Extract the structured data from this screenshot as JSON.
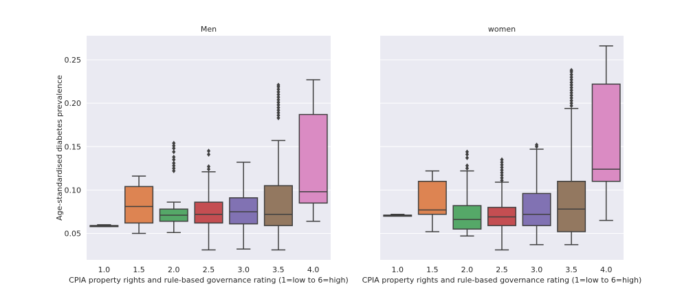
{
  "chart_data": [
    {
      "type": "box",
      "title": "Men",
      "xlabel": "CPIA property rights and rule-based governance rating (1=low to 6=high)",
      "ylabel": "Age-standardised diabetes prevalence",
      "ylim": [
        0.018,
        0.276
      ],
      "yticks": [
        0.05,
        0.1,
        0.15,
        0.2,
        0.25
      ],
      "ytick_labels": [
        "0.05",
        "0.10",
        "0.15",
        "0.20",
        "0.25"
      ],
      "categories": [
        "1.0",
        "1.5",
        "2.0",
        "2.5",
        "3.0",
        "3.5",
        "4.0"
      ],
      "grid": true,
      "boxes": [
        {
          "category": "1.0",
          "whisker_low": 0.058,
          "q1": 0.058,
          "median": 0.059,
          "q3": 0.059,
          "whisker_high": 0.06,
          "outliers": [],
          "color": "#4c72b0"
        },
        {
          "category": "1.5",
          "whisker_low": 0.05,
          "q1": 0.062,
          "median": 0.081,
          "q3": 0.104,
          "whisker_high": 0.116,
          "outliers": [],
          "color": "#dd8452"
        },
        {
          "category": "2.0",
          "whisker_low": 0.051,
          "q1": 0.064,
          "median": 0.071,
          "q3": 0.078,
          "whisker_high": 0.086,
          "outliers": [
            0.122,
            0.125,
            0.128,
            0.131,
            0.135,
            0.138,
            0.144,
            0.148,
            0.151,
            0.154
          ],
          "color": "#55a868"
        },
        {
          "category": "2.5",
          "whisker_low": 0.031,
          "q1": 0.062,
          "median": 0.072,
          "q3": 0.086,
          "whisker_high": 0.121,
          "outliers": [
            0.124,
            0.127,
            0.141,
            0.145
          ],
          "color": "#c44e52"
        },
        {
          "category": "3.0",
          "whisker_low": 0.032,
          "q1": 0.061,
          "median": 0.075,
          "q3": 0.091,
          "whisker_high": 0.132,
          "outliers": [],
          "color": "#8172b3"
        },
        {
          "category": "3.5",
          "whisker_low": 0.031,
          "q1": 0.059,
          "median": 0.072,
          "q3": 0.105,
          "whisker_high": 0.157,
          "outliers": [
            0.183,
            0.186,
            0.189,
            0.192,
            0.195,
            0.198,
            0.201,
            0.204,
            0.207,
            0.21,
            0.213,
            0.216,
            0.219,
            0.221
          ],
          "color": "#937860"
        },
        {
          "category": "4.0",
          "whisker_low": 0.064,
          "q1": 0.085,
          "median": 0.098,
          "q3": 0.187,
          "whisker_high": 0.227,
          "outliers": [],
          "color": "#da8bc3"
        }
      ]
    },
    {
      "type": "box",
      "title": "women",
      "xlabel": "CPIA property rights and rule-based governance rating (1=low to 6=high)",
      "ylabel": "",
      "ylim": [
        0.018,
        0.276
      ],
      "categories": [
        "1.0",
        "1.5",
        "2.0",
        "2.5",
        "3.0",
        "3.5",
        "4.0"
      ],
      "grid": true,
      "boxes": [
        {
          "category": "1.0",
          "whisker_low": 0.07,
          "q1": 0.07,
          "median": 0.071,
          "q3": 0.071,
          "whisker_high": 0.072,
          "outliers": [],
          "color": "#4c72b0"
        },
        {
          "category": "1.5",
          "whisker_low": 0.052,
          "q1": 0.072,
          "median": 0.077,
          "q3": 0.11,
          "whisker_high": 0.122,
          "outliers": [],
          "color": "#dd8452"
        },
        {
          "category": "2.0",
          "whisker_low": 0.047,
          "q1": 0.055,
          "median": 0.066,
          "q3": 0.082,
          "whisker_high": 0.122,
          "outliers": [
            0.125,
            0.128,
            0.137,
            0.141,
            0.144
          ],
          "color": "#55a868"
        },
        {
          "category": "2.5",
          "whisker_low": 0.031,
          "q1": 0.059,
          "median": 0.069,
          "q3": 0.08,
          "whisker_high": 0.109,
          "outliers": [
            0.111,
            0.114,
            0.117,
            0.12,
            0.123,
            0.126,
            0.129,
            0.132,
            0.135
          ],
          "color": "#c44e52"
        },
        {
          "category": "3.0",
          "whisker_low": 0.037,
          "q1": 0.059,
          "median": 0.072,
          "q3": 0.096,
          "whisker_high": 0.147,
          "outliers": [
            0.15,
            0.152
          ],
          "color": "#8172b3"
        },
        {
          "category": "3.5",
          "whisker_low": 0.037,
          "q1": 0.052,
          "median": 0.078,
          "q3": 0.11,
          "whisker_high": 0.194,
          "outliers": [
            0.197,
            0.2,
            0.203,
            0.206,
            0.209,
            0.212,
            0.215,
            0.218,
            0.221,
            0.224,
            0.227,
            0.23,
            0.233,
            0.236,
            0.238
          ],
          "color": "#937860"
        },
        {
          "category": "4.0",
          "whisker_low": 0.065,
          "q1": 0.11,
          "median": 0.124,
          "q3": 0.222,
          "whisker_high": 0.266,
          "outliers": [],
          "color": "#da8bc3"
        }
      ]
    }
  ]
}
